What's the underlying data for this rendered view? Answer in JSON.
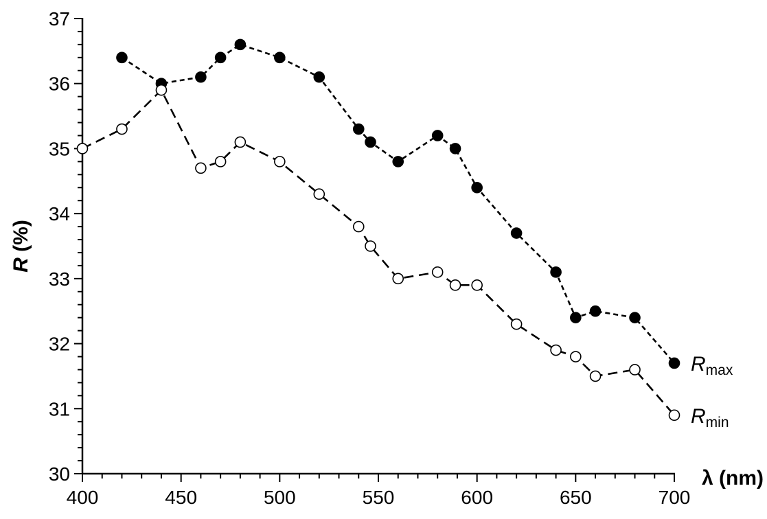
{
  "chart_data": {
    "type": "line",
    "title": "",
    "xlabel": "λ (nm)",
    "ylabel": "R (%)",
    "ylabel_parts": {
      "symbol": "R",
      "rest": " (%)"
    },
    "xlim": [
      400,
      700
    ],
    "ylim": [
      30,
      37
    ],
    "x_ticks": [
      400,
      450,
      500,
      550,
      600,
      650,
      700
    ],
    "y_ticks": [
      30,
      31,
      32,
      33,
      34,
      35,
      36,
      37
    ],
    "x_minor_step": 10,
    "y_minor_step": 0.2,
    "grid": false,
    "legend": "inline labels at right end of each series",
    "series": [
      {
        "name": "Rmax",
        "label_main": "R",
        "label_sub": "max",
        "marker": "filled-circle",
        "line_style": "short-dash",
        "color": "#000000",
        "x": [
          420,
          440,
          460,
          470,
          480,
          500,
          520,
          540,
          546,
          560,
          580,
          589,
          600,
          620,
          640,
          650,
          660,
          680,
          700
        ],
        "y": [
          36.4,
          36.0,
          36.1,
          36.4,
          36.6,
          36.4,
          36.1,
          35.3,
          35.1,
          34.8,
          35.2,
          35.0,
          34.4,
          33.7,
          33.1,
          32.4,
          32.5,
          32.4,
          31.7
        ]
      },
      {
        "name": "Rmin",
        "label_main": "R",
        "label_sub": "min",
        "marker": "open-circle",
        "line_style": "long-dash",
        "color": "#000000",
        "x": [
          400,
          420,
          440,
          460,
          470,
          480,
          500,
          520,
          540,
          546,
          560,
          580,
          589,
          600,
          620,
          640,
          650,
          660,
          680,
          700
        ],
        "y": [
          35.0,
          35.3,
          35.9,
          34.7,
          34.8,
          35.1,
          34.8,
          34.3,
          33.8,
          33.5,
          33.0,
          33.1,
          32.9,
          32.9,
          32.3,
          31.9,
          31.8,
          31.5,
          31.6,
          30.9
        ]
      }
    ]
  }
}
